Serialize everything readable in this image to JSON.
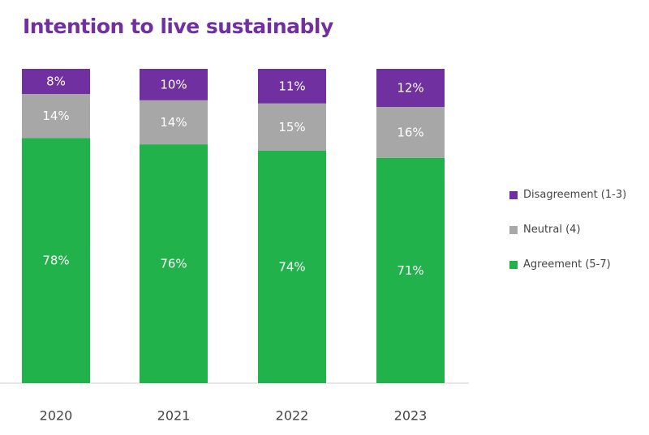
{
  "chart_data": {
    "type": "bar",
    "stacked": true,
    "title": "Intention to live sustainably",
    "categories": [
      "2020",
      "2021",
      "2022",
      "2023"
    ],
    "series": [
      {
        "name": "Agreement (5-7)",
        "color": "#21B24B",
        "values": [
          78,
          76,
          74,
          71
        ],
        "labels": [
          "78%",
          "76%",
          "74%",
          "71%"
        ],
        "label_color": "#ffffff"
      },
      {
        "name": "Neutral (4)",
        "color": "#A7A7A7",
        "values": [
          14,
          14,
          15,
          16
        ],
        "labels": [
          "14%",
          "14%",
          "15%",
          "16%"
        ],
        "label_color": "#ffffff"
      },
      {
        "name": "Disagreement (1-3)",
        "color": "#7030A0",
        "values": [
          8,
          10,
          11,
          12
        ],
        "labels": [
          "8%",
          "10%",
          "11%",
          "12%"
        ],
        "label_color": "#ffffff"
      }
    ],
    "legend": [
      {
        "name": "Disagreement (1-3)",
        "color": "#7030A0"
      },
      {
        "name": "Neutral (4)",
        "color": "#A7A7A7"
      },
      {
        "name": "Agreement (5-7)",
        "color": "#21B24B"
      }
    ],
    "xlabel": "",
    "ylabel": "",
    "ylim": [
      0,
      100
    ],
    "grid": false,
    "legend_position": "right"
  }
}
